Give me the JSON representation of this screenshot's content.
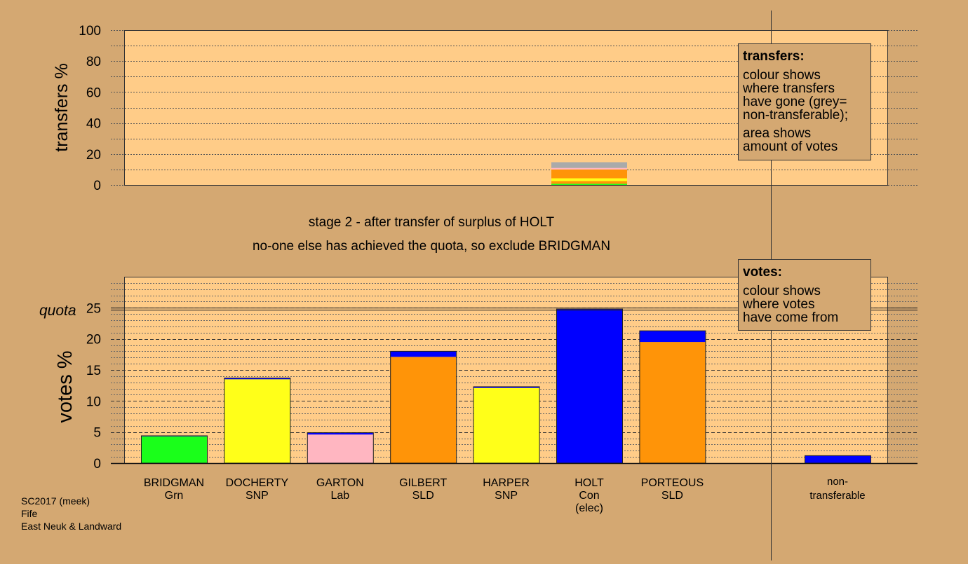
{
  "chart_data": [
    {
      "type": "bar",
      "name": "transfers",
      "ylabel": "transfers %",
      "ylim": [
        0,
        100
      ],
      "ticks": [
        0,
        20,
        40,
        60,
        80,
        100
      ],
      "grid": true,
      "legend": {
        "title": "transfers:",
        "text": [
          "colour shows",
          "where transfers",
          "have gone (grey=",
          "non-transferable);",
          "area shows",
          "amount of votes"
        ]
      },
      "bars": [
        {
          "category": "HOLT",
          "segments": [
            {
              "from": 0,
              "to": 0.8,
              "color": "#1aff1a"
            },
            {
              "from": 0.8,
              "to": 2.5,
              "color": "#ff9408"
            },
            {
              "from": 2.5,
              "to": 4.3,
              "color": "#ffff19"
            },
            {
              "from": 4.3,
              "to": 10.0,
              "color": "#ff9408"
            },
            {
              "from": 10.0,
              "to": 11.0,
              "color": "#ffb6c1"
            },
            {
              "from": 11.0,
              "to": 14.7,
              "color": "#aaaaaa"
            }
          ]
        }
      ]
    },
    {
      "type": "bar",
      "name": "votes",
      "ylabel": "votes %",
      "quota_label": "quota",
      "quota": 24.8,
      "ylim": [
        0,
        30
      ],
      "ticks": [
        0,
        5,
        10,
        15,
        20,
        25
      ],
      "grid": true,
      "legend": {
        "title": "votes:",
        "text": [
          "colour shows",
          "where votes",
          "have come from"
        ]
      },
      "candidates": [
        {
          "name": "BRIDGMAN",
          "party": "Grn",
          "note": "",
          "segments": [
            {
              "value": 4.3,
              "color": "#1aff1a"
            },
            {
              "value": 0.1,
              "color": "#0000ff"
            }
          ]
        },
        {
          "name": "DOCHERTY",
          "party": "SNP",
          "note": "",
          "segments": [
            {
              "value": 13.5,
              "color": "#ffff19"
            },
            {
              "value": 0.2,
              "color": "#0000ff"
            }
          ]
        },
        {
          "name": "GARTON",
          "party": "Lab",
          "note": "",
          "segments": [
            {
              "value": 4.6,
              "color": "#ffb6c1"
            },
            {
              "value": 0.3,
              "color": "#0000ff"
            }
          ]
        },
        {
          "name": "GILBERT",
          "party": "SLD",
          "note": "",
          "segments": [
            {
              "value": 17.1,
              "color": "#ff9408"
            },
            {
              "value": 0.9,
              "color": "#0000ff"
            }
          ]
        },
        {
          "name": "HARPER",
          "party": "SNP",
          "note": "",
          "segments": [
            {
              "value": 12.1,
              "color": "#ffff19"
            },
            {
              "value": 0.2,
              "color": "#0000ff"
            }
          ]
        },
        {
          "name": "HOLT",
          "party": "Con",
          "note": "(elec)",
          "segments": [
            {
              "value": 24.8,
              "color": "#0000ff"
            }
          ]
        },
        {
          "name": "PORTEOUS",
          "party": "SLD",
          "note": "",
          "segments": [
            {
              "value": 19.5,
              "color": "#ff9408"
            },
            {
              "value": 1.8,
              "color": "#0000ff"
            }
          ]
        }
      ],
      "nontransferable": {
        "label_line1": "non-",
        "label_line2": "transferable",
        "value": 1.2,
        "color": "#0000ff"
      }
    }
  ],
  "caption": {
    "line1": "stage 2 - after transfer of surplus of HOLT",
    "line2": "no-one else has achieved the quota, so exclude BRIDGMAN"
  },
  "footer": {
    "line1": "SC2017 (meek)",
    "line2": "Fife",
    "line3": "East Neuk & Landward"
  },
  "colors": {
    "background": "#d4a872",
    "plot_background": "#ffcc88"
  }
}
